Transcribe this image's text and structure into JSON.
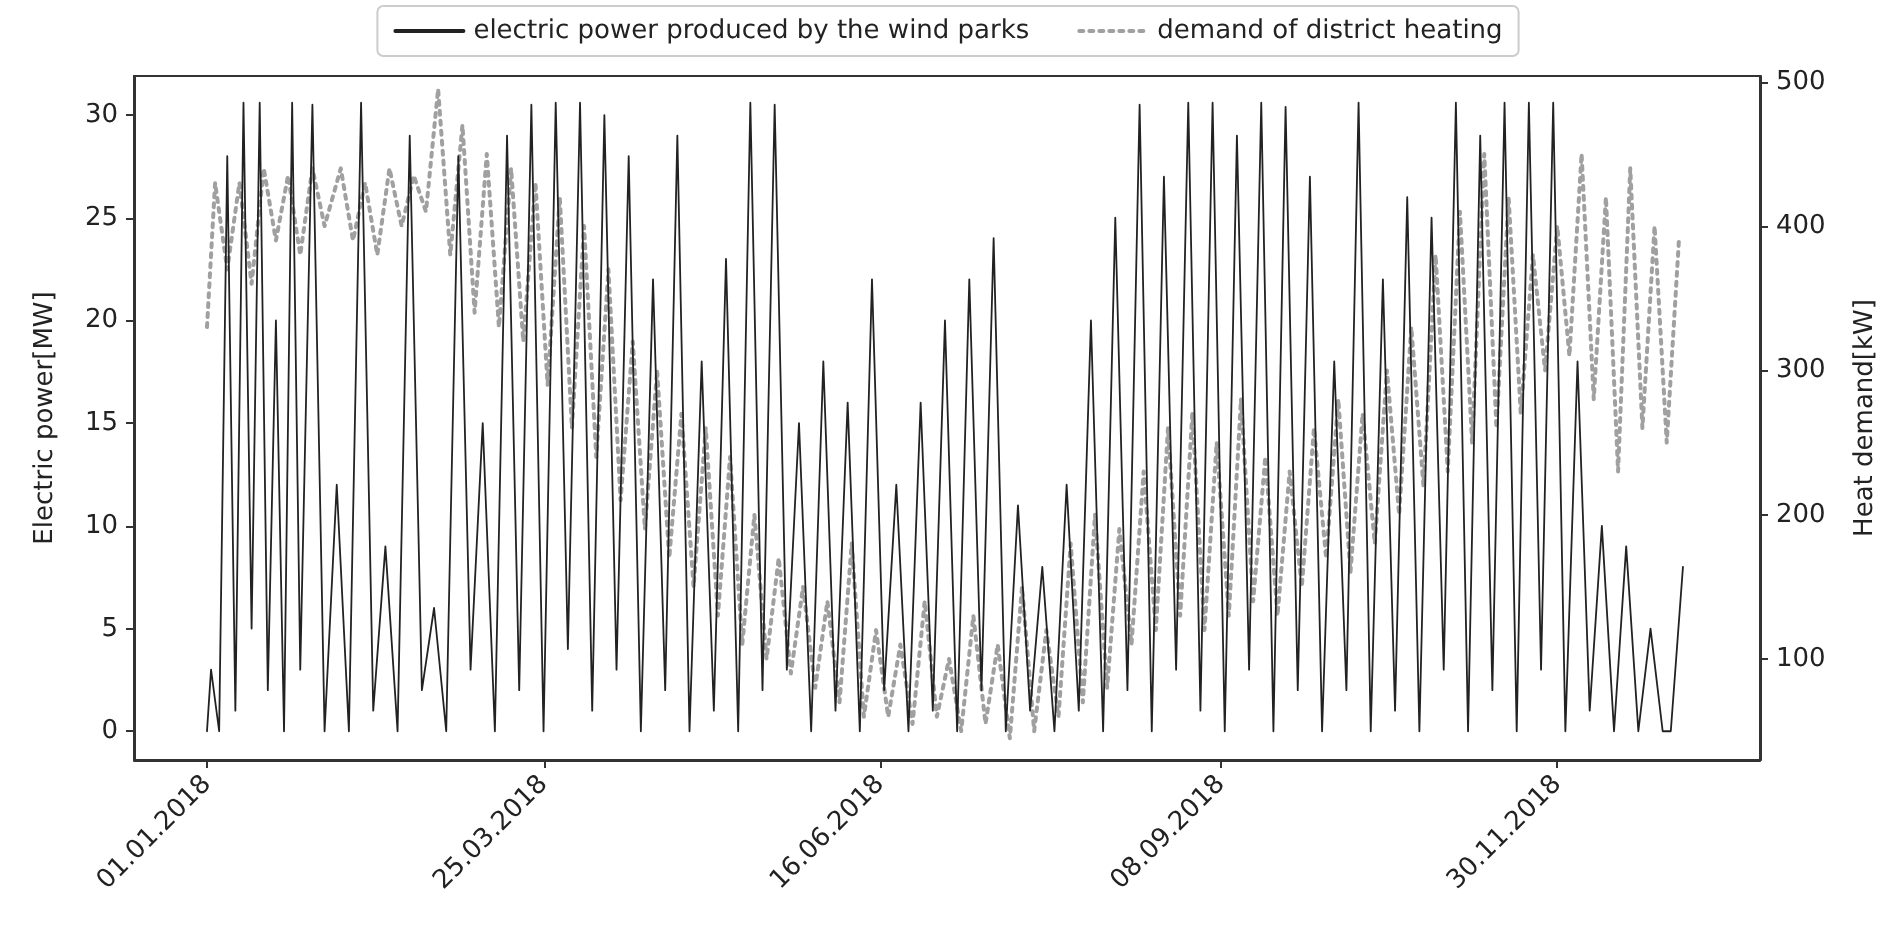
{
  "chart_data": {
    "type": "line",
    "ylabel": "Electric power[MW]",
    "y2label": "Heat demand[kW]",
    "xlim": [
      "2017-12-14",
      "2019-01-19"
    ],
    "xticks": [
      {
        "value": "2018-01-01",
        "label": "01.01.2018"
      },
      {
        "value": "2018-03-25",
        "label": "25.03.2018"
      },
      {
        "value": "2018-06-16",
        "label": "16.06.2018"
      },
      {
        "value": "2018-09-08",
        "label": "08.09.2018"
      },
      {
        "value": "2018-11-30",
        "label": "30.11.2018"
      }
    ],
    "ylim": [
      -1.4,
      31.9
    ],
    "yticks": [
      0,
      5,
      10,
      15,
      20,
      25,
      30
    ],
    "y2lim": [
      30,
      504
    ],
    "y2ticks": [
      100,
      200,
      300,
      400,
      500
    ],
    "grid": false,
    "legend": "top",
    "marker": "none",
    "series": [
      {
        "name": "electric power produced by the wind parks",
        "color": "#222222",
        "line_style": "solid",
        "x": [
          "2018-01-01",
          "2018-01-02",
          "2018-01-04",
          "2018-01-06",
          "2018-01-08",
          "2018-01-10",
          "2018-01-12",
          "2018-01-14",
          "2018-01-16",
          "2018-01-18",
          "2018-01-20",
          "2018-01-22",
          "2018-01-24",
          "2018-01-27",
          "2018-01-30",
          "2018-02-02",
          "2018-02-05",
          "2018-02-08",
          "2018-02-11",
          "2018-02-14",
          "2018-02-17",
          "2018-02-20",
          "2018-02-23",
          "2018-02-26",
          "2018-03-01",
          "2018-03-04",
          "2018-03-07",
          "2018-03-10",
          "2018-03-13",
          "2018-03-16",
          "2018-03-19",
          "2018-03-22",
          "2018-03-25",
          "2018-03-28",
          "2018-03-31",
          "2018-04-03",
          "2018-04-06",
          "2018-04-09",
          "2018-04-12",
          "2018-04-15",
          "2018-04-18",
          "2018-04-21",
          "2018-04-24",
          "2018-04-27",
          "2018-04-30",
          "2018-05-03",
          "2018-05-06",
          "2018-05-09",
          "2018-05-12",
          "2018-05-15",
          "2018-05-18",
          "2018-05-21",
          "2018-05-24",
          "2018-05-27",
          "2018-05-30",
          "2018-06-02",
          "2018-06-05",
          "2018-06-08",
          "2018-06-11",
          "2018-06-14",
          "2018-06-17",
          "2018-06-20",
          "2018-06-23",
          "2018-06-26",
          "2018-06-29",
          "2018-07-02",
          "2018-07-05",
          "2018-07-08",
          "2018-07-11",
          "2018-07-14",
          "2018-07-17",
          "2018-07-20",
          "2018-07-23",
          "2018-07-26",
          "2018-07-29",
          "2018-08-01",
          "2018-08-04",
          "2018-08-07",
          "2018-08-10",
          "2018-08-13",
          "2018-08-16",
          "2018-08-19",
          "2018-08-22",
          "2018-08-25",
          "2018-08-28",
          "2018-08-31",
          "2018-09-03",
          "2018-09-06",
          "2018-09-09",
          "2018-09-12",
          "2018-09-15",
          "2018-09-18",
          "2018-09-21",
          "2018-09-24",
          "2018-09-27",
          "2018-09-30",
          "2018-10-03",
          "2018-10-06",
          "2018-10-09",
          "2018-10-12",
          "2018-10-15",
          "2018-10-18",
          "2018-10-21",
          "2018-10-24",
          "2018-10-27",
          "2018-10-30",
          "2018-11-02",
          "2018-11-05",
          "2018-11-08",
          "2018-11-11",
          "2018-11-14",
          "2018-11-17",
          "2018-11-20",
          "2018-11-23",
          "2018-11-26",
          "2018-11-29",
          "2018-12-02",
          "2018-12-05",
          "2018-12-08",
          "2018-12-11",
          "2018-12-14",
          "2018-12-17",
          "2018-12-20",
          "2018-12-23",
          "2018-12-26",
          "2018-12-28",
          "2018-12-31"
        ],
        "values": [
          0,
          3,
          0,
          28,
          1,
          30.6,
          5,
          30.6,
          2,
          20,
          0,
          30.6,
          3,
          30.5,
          0,
          12,
          0,
          30.6,
          1,
          9,
          0,
          29,
          2,
          6,
          0,
          28,
          3,
          15,
          0,
          29,
          2,
          30.5,
          0,
          30.6,
          4,
          30.6,
          1,
          30,
          3,
          28,
          0,
          22,
          2,
          29,
          0,
          18,
          1,
          23,
          0,
          30.6,
          2,
          30.5,
          3,
          15,
          0,
          18,
          1,
          16,
          0,
          22,
          2,
          12,
          0,
          16,
          1,
          20,
          0,
          22,
          2,
          24,
          0,
          11,
          1,
          8,
          0,
          12,
          1,
          20,
          0,
          25,
          2,
          30.5,
          0,
          27,
          3,
          30.6,
          1,
          30.6,
          0,
          29,
          3,
          30.6,
          0,
          30.4,
          2,
          27,
          0,
          18,
          2,
          30.6,
          0,
          22,
          1,
          26,
          0,
          25,
          3,
          30.6,
          0,
          29,
          2,
          30.6,
          0,
          30.6,
          3,
          30.6,
          0,
          18,
          1,
          10,
          0,
          9,
          0,
          5,
          0,
          0,
          8
        ]
      },
      {
        "name": "demand of district heating",
        "color": "#a0a0a0",
        "line_style": "dotted",
        "axis": "y2",
        "x": [
          "2018-01-01",
          "2018-01-03",
          "2018-01-06",
          "2018-01-09",
          "2018-01-12",
          "2018-01-15",
          "2018-01-18",
          "2018-01-21",
          "2018-01-24",
          "2018-01-27",
          "2018-01-30",
          "2018-02-03",
          "2018-02-06",
          "2018-02-09",
          "2018-02-12",
          "2018-02-15",
          "2018-02-18",
          "2018-02-21",
          "2018-02-24",
          "2018-02-27",
          "2018-03-02",
          "2018-03-05",
          "2018-03-08",
          "2018-03-11",
          "2018-03-14",
          "2018-03-17",
          "2018-03-20",
          "2018-03-23",
          "2018-03-26",
          "2018-03-29",
          "2018-04-01",
          "2018-04-04",
          "2018-04-07",
          "2018-04-10",
          "2018-04-13",
          "2018-04-16",
          "2018-04-19",
          "2018-04-22",
          "2018-04-25",
          "2018-04-28",
          "2018-05-01",
          "2018-05-04",
          "2018-05-07",
          "2018-05-10",
          "2018-05-13",
          "2018-05-16",
          "2018-05-19",
          "2018-05-22",
          "2018-05-25",
          "2018-05-28",
          "2018-05-31",
          "2018-06-03",
          "2018-06-06",
          "2018-06-09",
          "2018-06-12",
          "2018-06-15",
          "2018-06-18",
          "2018-06-21",
          "2018-06-24",
          "2018-06-27",
          "2018-06-30",
          "2018-07-03",
          "2018-07-06",
          "2018-07-09",
          "2018-07-12",
          "2018-07-15",
          "2018-07-18",
          "2018-07-21",
          "2018-07-24",
          "2018-07-27",
          "2018-07-30",
          "2018-08-02",
          "2018-08-05",
          "2018-08-08",
          "2018-08-11",
          "2018-08-14",
          "2018-08-17",
          "2018-08-20",
          "2018-08-23",
          "2018-08-26",
          "2018-08-29",
          "2018-09-01",
          "2018-09-04",
          "2018-09-07",
          "2018-09-10",
          "2018-09-13",
          "2018-09-16",
          "2018-09-19",
          "2018-09-22",
          "2018-09-25",
          "2018-09-28",
          "2018-10-01",
          "2018-10-04",
          "2018-10-07",
          "2018-10-10",
          "2018-10-13",
          "2018-10-16",
          "2018-10-19",
          "2018-10-22",
          "2018-10-25",
          "2018-10-28",
          "2018-10-31",
          "2018-11-03",
          "2018-11-06",
          "2018-11-09",
          "2018-11-12",
          "2018-11-15",
          "2018-11-18",
          "2018-11-21",
          "2018-11-24",
          "2018-11-27",
          "2018-11-30",
          "2018-12-03",
          "2018-12-06",
          "2018-12-09",
          "2018-12-12",
          "2018-12-15",
          "2018-12-18",
          "2018-12-21",
          "2018-12-24",
          "2018-12-27",
          "2018-12-30"
        ],
        "values": [
          330,
          430,
          370,
          430,
          360,
          440,
          390,
          435,
          380,
          440,
          400,
          440,
          390,
          430,
          380,
          440,
          400,
          435,
          410,
          495,
          380,
          470,
          340,
          450,
          330,
          440,
          320,
          430,
          290,
          420,
          260,
          400,
          240,
          370,
          210,
          320,
          190,
          300,
          170,
          270,
          150,
          260,
          130,
          240,
          110,
          200,
          100,
          170,
          90,
          150,
          80,
          140,
          70,
          180,
          60,
          120,
          60,
          110,
          55,
          140,
          60,
          100,
          50,
          130,
          55,
          110,
          45,
          150,
          50,
          120,
          60,
          180,
          70,
          200,
          80,
          190,
          110,
          230,
          120,
          260,
          130,
          270,
          120,
          250,
          130,
          280,
          140,
          240,
          130,
          230,
          150,
          260,
          170,
          280,
          160,
          270,
          180,
          300,
          200,
          330,
          220,
          380,
          230,
          410,
          250,
          450,
          260,
          420,
          270,
          380,
          300,
          400,
          310,
          450,
          280,
          420,
          230,
          440,
          260,
          400,
          250,
          390
        ]
      }
    ]
  }
}
